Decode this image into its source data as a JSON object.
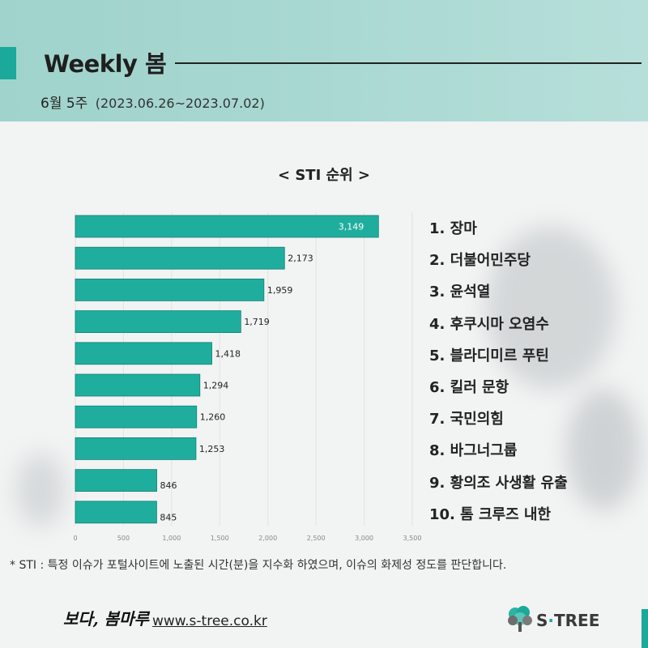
{
  "header": {
    "title": "Weekly 봄",
    "week_label": "6월 5주",
    "date_range": "(2023.06.26~2023.07.02)"
  },
  "chart_data": {
    "type": "bar",
    "orientation": "horizontal",
    "title": "< STI 순위 >",
    "categories": [
      "1. 장마",
      "2. 더불어민주당",
      "3. 윤석열",
      "4. 후쿠시마 오염수",
      "5. 블라디미르 푸틴",
      "6. 킬러 문항",
      "7. 국민의힘",
      "8. 바그너그룹",
      "9. 황의조 사생활 유출",
      "10. 톰 크루즈 내한"
    ],
    "values": [
      3149,
      2173,
      1959,
      1719,
      1418,
      1294,
      1260,
      1253,
      846,
      845
    ],
    "value_labels": [
      "3,149",
      "2,173",
      "1,959",
      "1,719",
      "1,418",
      "1,294",
      "1,260",
      "1,253",
      "846",
      "845"
    ],
    "xlim": [
      0,
      3500
    ],
    "x_ticks": [
      0,
      500,
      1000,
      1500,
      2000,
      2500,
      3000,
      3500
    ],
    "x_tick_labels": [
      "0",
      "500",
      "1,000",
      "1,500",
      "2,000",
      "2,500",
      "3,000",
      "3,500"
    ],
    "bar_color": "#1fae9e",
    "grid": true
  },
  "note": "* STI : 특정 이슈가 포털사이트에 노출된 시간(분)을 지수화 하였으며, 이슈의 화제성 정도를 판단합니다.",
  "footer": {
    "brand_kr": "보다, 봄마루",
    "url": "www.s-tree.co.kr",
    "logo_text_a": "S",
    "logo_dot": "·",
    "logo_text_b": "TREE",
    "logo_icon": "tree-icon"
  },
  "colors": {
    "accent": "#1aa99a",
    "header_bg": "#a9d8d2"
  }
}
